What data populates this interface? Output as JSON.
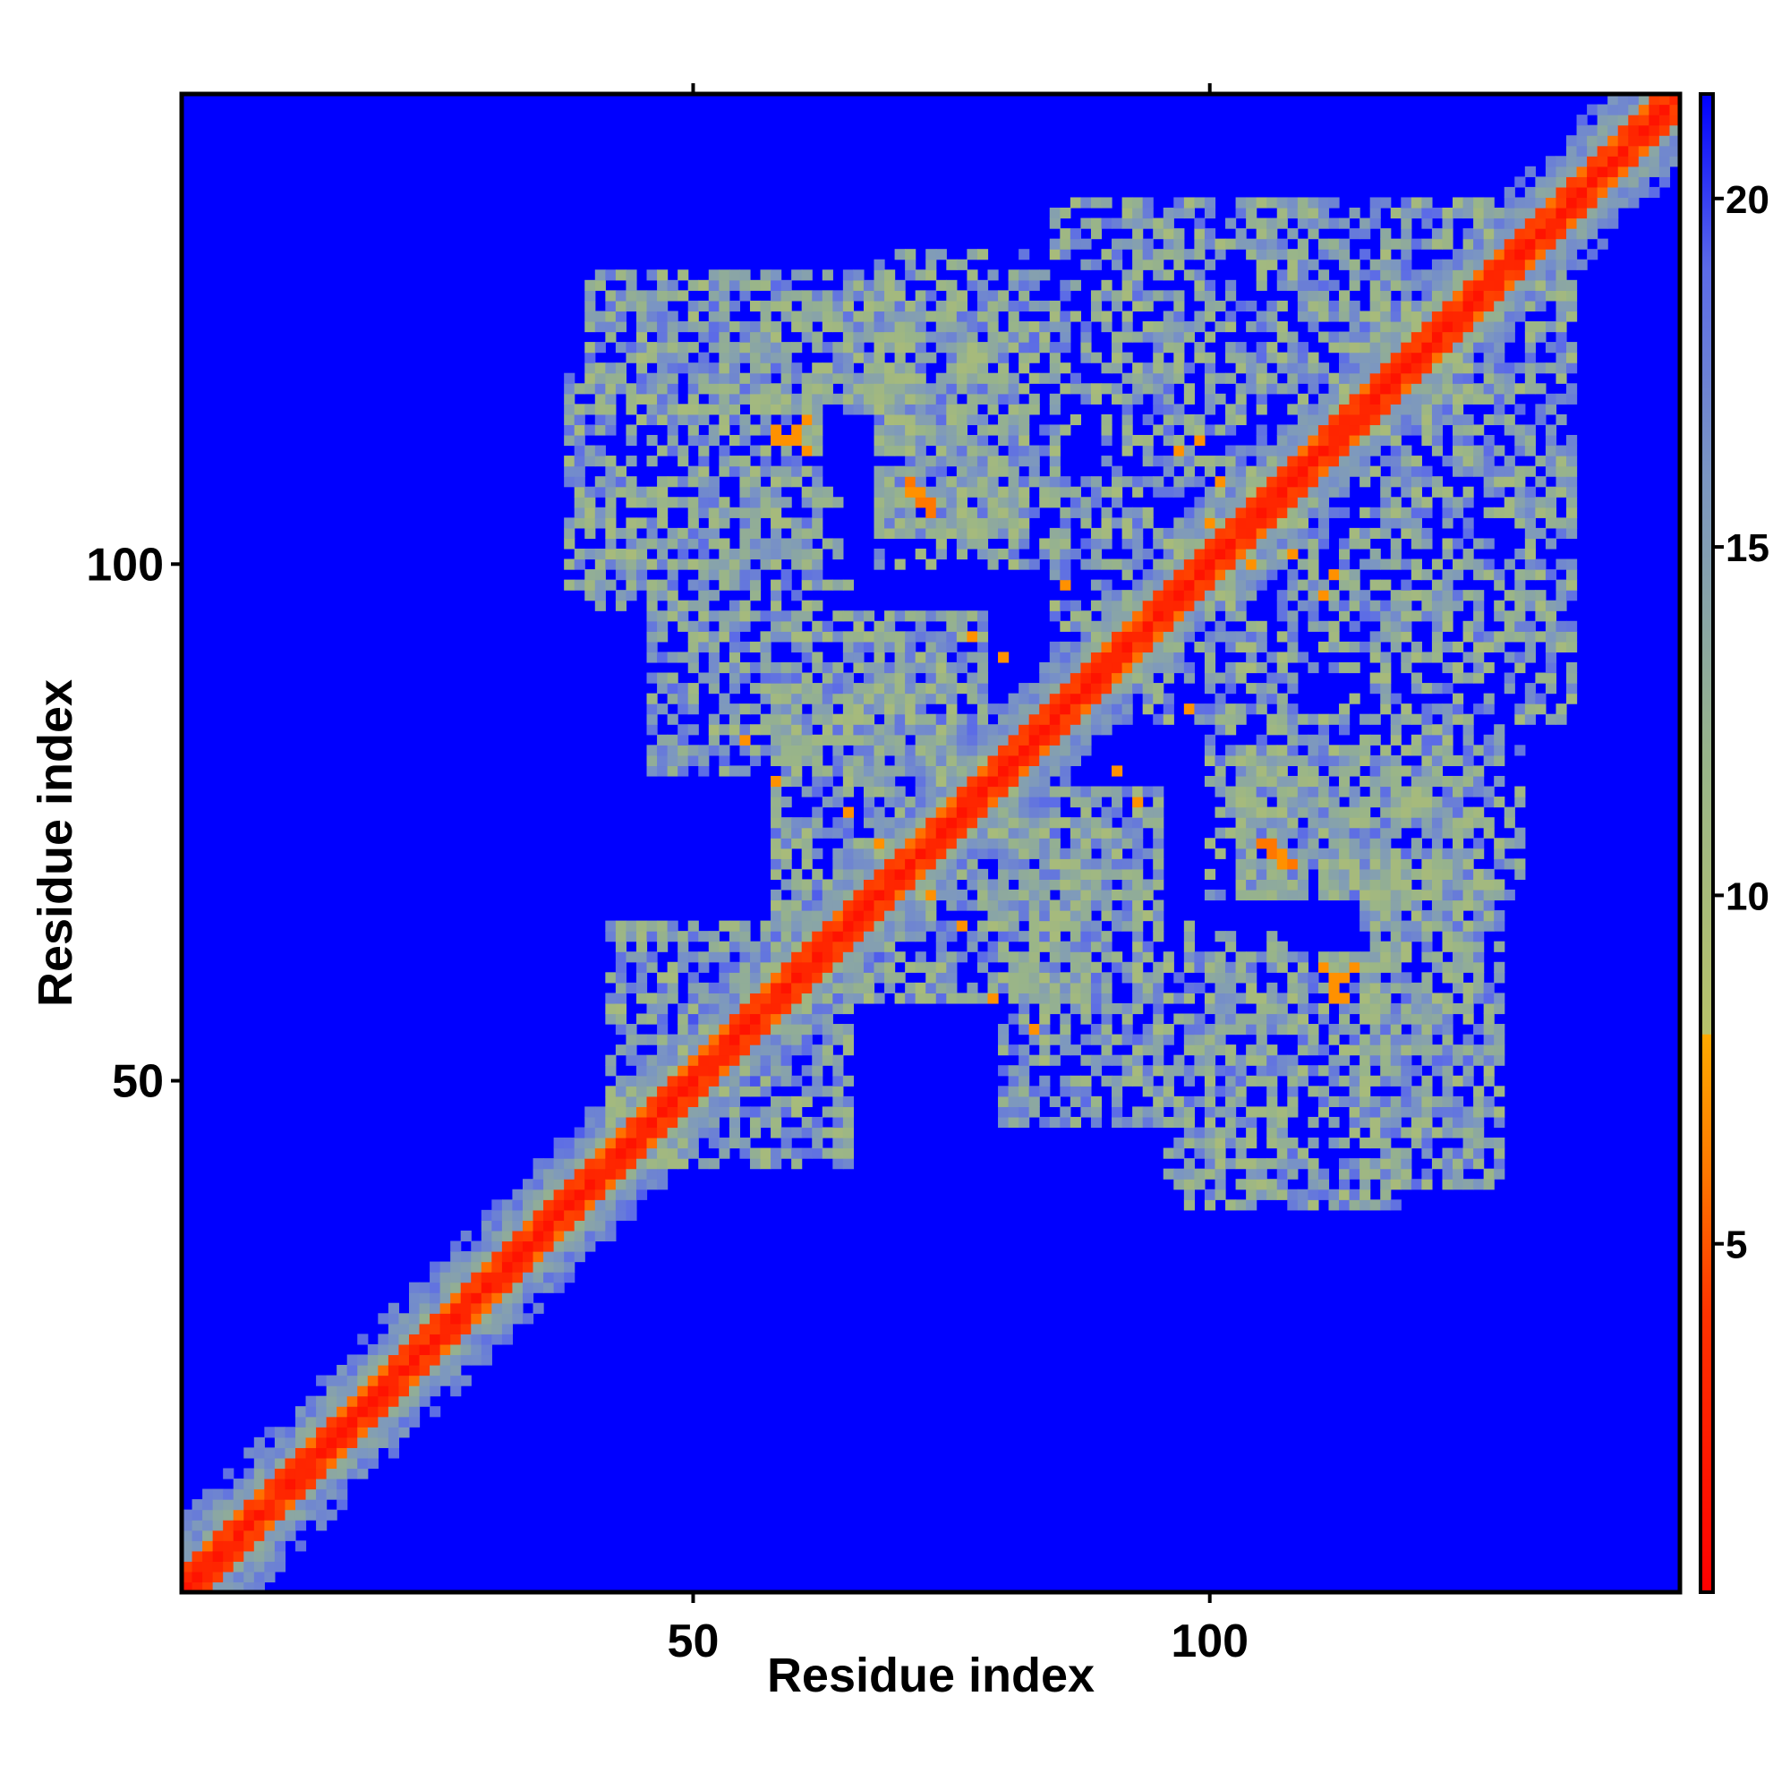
{
  "chart_data": {
    "type": "heatmap",
    "title": "",
    "xlabel": "Residue index",
    "ylabel": "Residue index",
    "n_residues": 145,
    "xlim": [
      1,
      145
    ],
    "ylim": [
      1,
      145
    ],
    "x_ticks": [
      50,
      100
    ],
    "y_ticks": [
      50,
      100
    ],
    "x_tick_labels": [
      "50",
      "100"
    ],
    "y_tick_labels": [
      "50",
      "100"
    ],
    "colorbar": {
      "range": [
        0,
        21.5
      ],
      "ticks": [
        5,
        10,
        15,
        20
      ],
      "tick_labels": [
        "5",
        "10",
        "15",
        "20"
      ],
      "stops": [
        {
          "value": 0,
          "color": "#ff0000"
        },
        {
          "value": 4.0,
          "color": "#ff3300"
        },
        {
          "value": 6.0,
          "color": "#ff7700"
        },
        {
          "value": 8.0,
          "color": "#ffaa00"
        },
        {
          "value": 8.01,
          "color": "#b8c26a"
        },
        {
          "value": 12.0,
          "color": "#98b48a"
        },
        {
          "value": 16.0,
          "color": "#7b96c2"
        },
        {
          "value": 19.0,
          "color": "#5b6ae8"
        },
        {
          "value": 21.5,
          "color": "#0000ff"
        }
      ]
    },
    "background_value": 21.5,
    "diagonal": {
      "value": 1.5,
      "near_width": 2.5,
      "band_width": 7
    },
    "contact_regions": [
      {
        "x": [
          40,
          70
        ],
        "y": [
          115,
          128
        ],
        "density": 0.7
      },
      {
        "x": [
          68,
          85
        ],
        "y": [
          100,
          130
        ],
        "density": 0.55
      },
      {
        "x": [
          85,
          100
        ],
        "y": [
          112,
          135
        ],
        "density": 0.5
      },
      {
        "x": [
          105,
          128
        ],
        "y": [
          115,
          135
        ],
        "density": 0.65
      },
      {
        "x": [
          46,
          78
        ],
        "y": [
          80,
          95
        ],
        "density": 0.7
      },
      {
        "x": [
          66,
          90
        ],
        "y": [
          58,
          75
        ],
        "density": 0.6
      },
      {
        "x": [
          90,
          108
        ],
        "y": [
          85,
          110
        ],
        "density": 0.6
      },
      {
        "x": [
          103,
          125
        ],
        "y": [
          68,
          82
        ],
        "density": 0.65
      },
      {
        "x": [
          98,
          118
        ],
        "y": [
          38,
          62
        ],
        "density": 0.6
      },
      {
        "x": [
          42,
          65
        ],
        "y": [
          42,
          65
        ],
        "density": 0.7
      },
      {
        "x": [
          40,
          65
        ],
        "y": [
          96,
          108
        ],
        "density": 0.4
      },
      {
        "x": [
          110,
          135
        ],
        "y": [
          92,
          105
        ],
        "density": 0.4
      }
    ],
    "contacts": [
      {
        "x": 71,
        "y": 107,
        "value": 7
      },
      {
        "x": 72,
        "y": 106,
        "value": 6
      },
      {
        "x": 73,
        "y": 105,
        "value": 6
      },
      {
        "x": 106,
        "y": 73,
        "value": 6
      },
      {
        "x": 107,
        "y": 72,
        "value": 7
      },
      {
        "x": 108,
        "y": 71,
        "value": 6
      },
      {
        "x": 58,
        "y": 113,
        "value": 7
      },
      {
        "x": 60,
        "y": 112,
        "value": 7
      },
      {
        "x": 61,
        "y": 111,
        "value": 7
      },
      {
        "x": 112,
        "y": 58,
        "value": 7
      },
      {
        "x": 113,
        "y": 60,
        "value": 7
      },
      {
        "x": 114,
        "y": 61,
        "value": 7
      },
      {
        "x": 55,
        "y": 83,
        "value": 7
      },
      {
        "x": 58,
        "y": 79,
        "value": 7
      },
      {
        "x": 83,
        "y": 55,
        "value": 7
      },
      {
        "x": 79,
        "y": 58,
        "value": 7
      },
      {
        "x": 97,
        "y": 111,
        "value": 7
      },
      {
        "x": 99,
        "y": 112,
        "value": 7
      },
      {
        "x": 111,
        "y": 97,
        "value": 7
      },
      {
        "x": 112,
        "y": 99,
        "value": 7
      },
      {
        "x": 77,
        "y": 93,
        "value": 7
      },
      {
        "x": 93,
        "y": 77,
        "value": 7
      },
      {
        "x": 80,
        "y": 91,
        "value": 7
      },
      {
        "x": 91,
        "y": 80,
        "value": 7
      },
      {
        "x": 104,
        "y": 100,
        "value": 7
      },
      {
        "x": 100,
        "y": 104,
        "value": 7
      },
      {
        "x": 108,
        "y": 101,
        "value": 7
      },
      {
        "x": 101,
        "y": 108,
        "value": 7
      },
      {
        "x": 73,
        "y": 68,
        "value": 7
      },
      {
        "x": 68,
        "y": 73,
        "value": 7
      },
      {
        "x": 65,
        "y": 76,
        "value": 7
      },
      {
        "x": 76,
        "y": 65,
        "value": 7
      },
      {
        "x": 112,
        "y": 59,
        "value": 7
      },
      {
        "x": 98,
        "y": 86,
        "value": 7
      },
      {
        "x": 86,
        "y": 98,
        "value": 7
      }
    ]
  }
}
